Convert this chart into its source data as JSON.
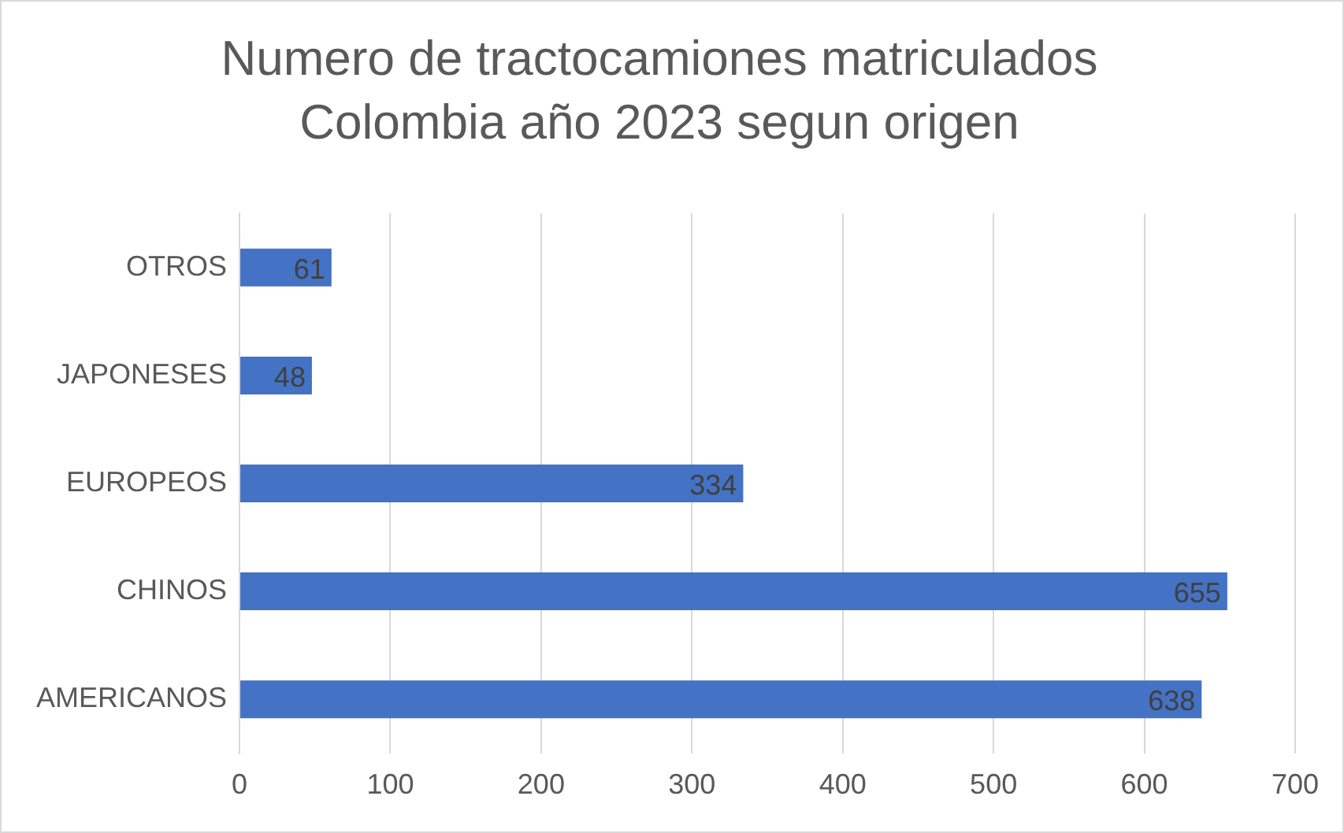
{
  "chart_data": {
    "type": "bar",
    "orientation": "horizontal",
    "title": "Numero de tractocamiones matriculados\nColombia año 2023 segun origen",
    "categories": [
      "OTROS",
      "JAPONESES",
      "EUROPEOS",
      "CHINOS",
      "AMERICANOS"
    ],
    "values": [
      61,
      48,
      334,
      655,
      638
    ],
    "color": "#4472c4",
    "xlim": [
      0,
      700
    ],
    "xticks": [
      0,
      100,
      200,
      300,
      400,
      500,
      600,
      700
    ],
    "grid": "x",
    "data_labels": true,
    "legend": false
  }
}
